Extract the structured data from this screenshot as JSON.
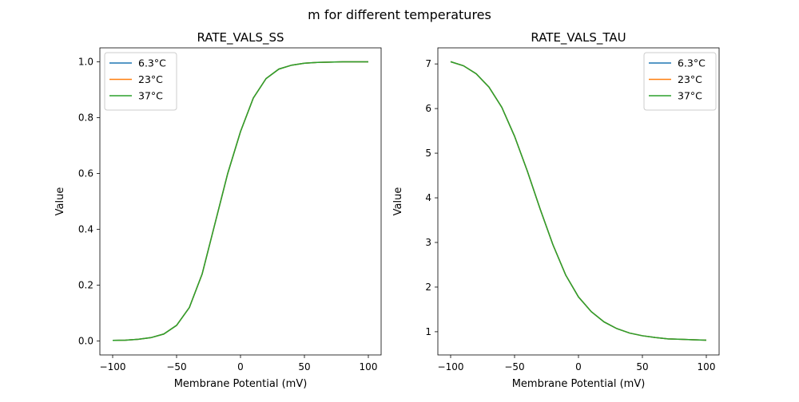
{
  "figure": {
    "suptitle": "m for different temperatures"
  },
  "chart_data": [
    {
      "type": "line",
      "title": "RATE_VALS_SS",
      "xlabel": "Membrane Potential (mV)",
      "ylabel": "Value",
      "xlim": [
        -110,
        110
      ],
      "ylim": [
        -0.05,
        1.05
      ],
      "xticks": [
        -100,
        -50,
        0,
        50,
        100
      ],
      "yticks": [
        0.0,
        0.2,
        0.4,
        0.6,
        0.8,
        1.0
      ],
      "ytick_format": "fixed1",
      "grid": false,
      "legend": "upper left",
      "x": [
        -100,
        -90,
        -80,
        -70,
        -60,
        -50,
        -40,
        -30,
        -20,
        -10,
        0,
        10,
        20,
        30,
        40,
        50,
        60,
        70,
        80,
        90,
        100
      ],
      "series": [
        {
          "name": "6.3°C",
          "color": "#1f77b4",
          "values": [
            0.002,
            0.003,
            0.006,
            0.012,
            0.025,
            0.056,
            0.12,
            0.24,
            0.42,
            0.6,
            0.75,
            0.87,
            0.94,
            0.974,
            0.988,
            0.995,
            0.998,
            0.999,
            1.0,
            1.0,
            1.0
          ]
        },
        {
          "name": "23°C",
          "color": "#ff7f0e",
          "values": [
            0.002,
            0.003,
            0.006,
            0.012,
            0.025,
            0.056,
            0.12,
            0.24,
            0.42,
            0.6,
            0.75,
            0.87,
            0.94,
            0.974,
            0.988,
            0.995,
            0.998,
            0.999,
            1.0,
            1.0,
            1.0
          ]
        },
        {
          "name": "37°C",
          "color": "#2ca02c",
          "values": [
            0.002,
            0.003,
            0.006,
            0.012,
            0.025,
            0.056,
            0.12,
            0.24,
            0.42,
            0.6,
            0.75,
            0.87,
            0.94,
            0.974,
            0.988,
            0.995,
            0.998,
            0.999,
            1.0,
            1.0,
            1.0
          ]
        }
      ]
    },
    {
      "type": "line",
      "title": "RATE_VALS_TAU",
      "xlabel": "Membrane Potential (mV)",
      "ylabel": "Value",
      "xlim": [
        -110,
        110
      ],
      "ylim": [
        0.48,
        7.36
      ],
      "xticks": [
        -100,
        -50,
        0,
        50,
        100
      ],
      "yticks": [
        1,
        2,
        3,
        4,
        5,
        6,
        7
      ],
      "ytick_format": "int",
      "grid": false,
      "legend": "upper right",
      "x": [
        -100,
        -90,
        -80,
        -70,
        -60,
        -50,
        -40,
        -30,
        -20,
        -10,
        0,
        10,
        20,
        30,
        40,
        50,
        60,
        70,
        80,
        90,
        100
      ],
      "series": [
        {
          "name": "6.3°C",
          "color": "#1f77b4",
          "values": [
            7.05,
            6.96,
            6.78,
            6.48,
            6.03,
            5.38,
            4.6,
            3.75,
            2.95,
            2.27,
            1.78,
            1.45,
            1.22,
            1.07,
            0.97,
            0.91,
            0.87,
            0.84,
            0.83,
            0.82,
            0.81
          ]
        },
        {
          "name": "23°C",
          "color": "#ff7f0e",
          "values": [
            7.05,
            6.96,
            6.78,
            6.48,
            6.03,
            5.38,
            4.6,
            3.75,
            2.95,
            2.27,
            1.78,
            1.45,
            1.22,
            1.07,
            0.97,
            0.91,
            0.87,
            0.84,
            0.83,
            0.82,
            0.81
          ]
        },
        {
          "name": "37°C",
          "color": "#2ca02c",
          "values": [
            7.05,
            6.96,
            6.78,
            6.48,
            6.03,
            5.38,
            4.6,
            3.75,
            2.95,
            2.27,
            1.78,
            1.45,
            1.22,
            1.07,
            0.97,
            0.91,
            0.87,
            0.84,
            0.83,
            0.82,
            0.81
          ]
        }
      ]
    }
  ]
}
